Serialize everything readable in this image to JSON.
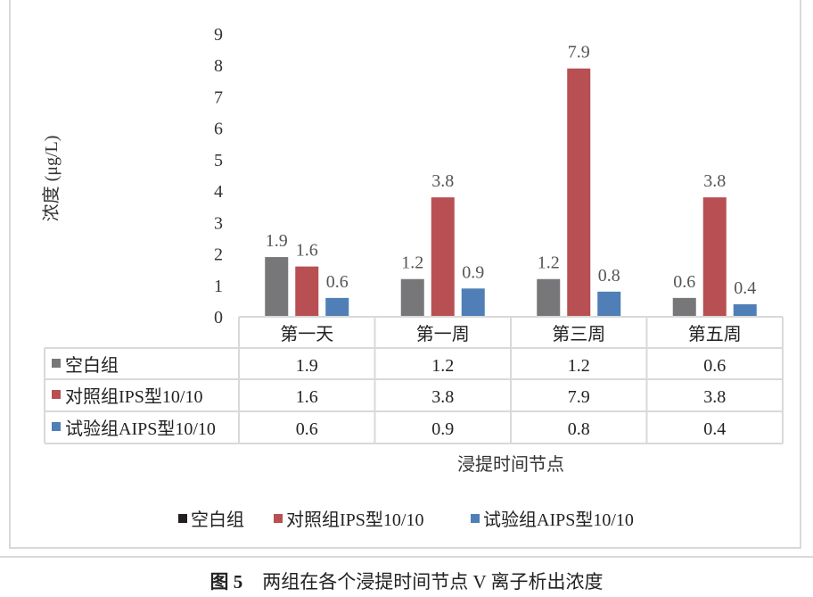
{
  "chart_data": {
    "type": "bar",
    "title": "",
    "xlabel": "浸提时间节点",
    "ylabel": "浓度 (μg/L)",
    "ylim": [
      0,
      9
    ],
    "yticks": [
      0,
      1,
      2,
      3,
      4,
      5,
      6,
      7,
      8,
      9
    ],
    "grid": false,
    "legend_position": "bottom",
    "data_table": true,
    "categories": [
      "第一天",
      "第一周",
      "第三周",
      "第五周"
    ],
    "series": [
      {
        "name": "空白组",
        "values": [
          1.9,
          1.2,
          1.2,
          0.6
        ],
        "color": "#777779"
      },
      {
        "name": "对照组IPS型10/10",
        "values": [
          1.6,
          3.8,
          7.9,
          3.8
        ],
        "color": "#b84f52"
      },
      {
        "name": "试验组AIPS型10/10",
        "values": [
          0.6,
          0.9,
          0.8,
          0.4
        ],
        "color": "#4f7fb6"
      }
    ],
    "legend_swatch_colors": [
      "#231f20",
      "#b84f52",
      "#4f7fb6"
    ]
  },
  "caption": {
    "label": "图 5",
    "text": "两组在各个浸提时间节点 V 离子析出浓度"
  }
}
